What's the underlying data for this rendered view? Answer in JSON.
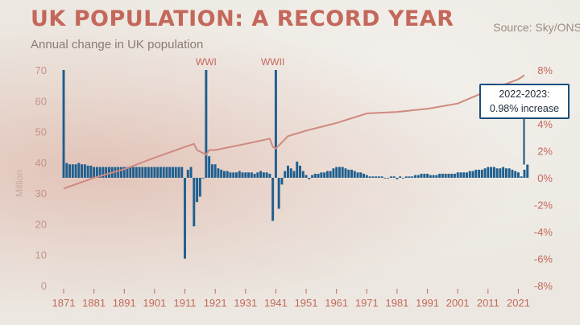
{
  "title": "UK POPULATION: A RECORD YEAR",
  "subtitle": "Annual change in UK population",
  "source": "Source: Sky/ONS",
  "callout": {
    "line1": "2022-2023:",
    "line2": "0.98% increase"
  },
  "colors": {
    "title": "#c4685b",
    "bar": "#1f5f8f",
    "line": "#cf8a80",
    "left_axis": "#c4948a",
    "right_axis": "#c4685b",
    "x_axis": "#c4685b",
    "callout_border": "#1b4e7c"
  },
  "chart_data": {
    "type": "bar+line",
    "x_start": 1871,
    "x_end": 2023,
    "x_ticks": [
      "1871",
      "1881",
      "1891",
      "1901",
      "1911",
      "1921",
      "1931",
      "1941",
      "1951",
      "1961",
      "1971",
      "1981",
      "1991",
      "2001",
      "2011",
      "2021"
    ],
    "left_axis": {
      "label": "Million",
      "range": [
        0,
        70
      ],
      "ticks": [
        "0",
        "10",
        "20",
        "30",
        "40",
        "50",
        "60",
        "70"
      ]
    },
    "right_axis": {
      "range": [
        -8,
        8
      ],
      "ticks": [
        "-8%",
        "-6%",
        "-4%",
        "-2%",
        "0%",
        "2%",
        "4%",
        "6%",
        "8%"
      ]
    },
    "annotations": [
      {
        "label": "WWI",
        "year": 1918
      },
      {
        "label": "WWII",
        "year": 1940
      }
    ],
    "series": [
      {
        "kind": "line",
        "axis": "left",
        "points": [
          [
            1871,
            31.5
          ],
          [
            1881,
            35.0
          ],
          [
            1891,
            37.8
          ],
          [
            1901,
            41.5
          ],
          [
            1911,
            45.0
          ],
          [
            1914,
            46.0
          ],
          [
            1915,
            44.0
          ],
          [
            1918,
            42.5
          ],
          [
            1919,
            44.0
          ],
          [
            1921,
            44.0
          ],
          [
            1931,
            46.0
          ],
          [
            1939,
            47.7
          ],
          [
            1940,
            45.0
          ],
          [
            1941,
            44.5
          ],
          [
            1945,
            48.5
          ],
          [
            1951,
            50.3
          ],
          [
            1961,
            52.8
          ],
          [
            1971,
            55.9
          ],
          [
            1981,
            56.4
          ],
          [
            1991,
            57.4
          ],
          [
            2001,
            59.1
          ],
          [
            2011,
            63.3
          ],
          [
            2021,
            67.0
          ],
          [
            2023,
            68.3
          ]
        ]
      },
      {
        "kind": "bar",
        "axis": "right",
        "values": [
          8.0,
          1.1,
          1.0,
          1.0,
          1.0,
          1.1,
          1.0,
          1.0,
          0.9,
          0.9,
          0.8,
          0.8,
          0.8,
          0.8,
          0.8,
          0.8,
          0.8,
          0.8,
          0.8,
          0.8,
          0.8,
          0.8,
          0.8,
          0.8,
          0.8,
          0.8,
          0.8,
          0.8,
          0.8,
          0.8,
          0.8,
          0.8,
          0.8,
          0.8,
          0.8,
          0.8,
          0.8,
          0.8,
          0.8,
          0.8,
          -6.0,
          0.6,
          0.8,
          -3.6,
          -1.8,
          -1.4,
          0.0,
          8.0,
          1.6,
          1.0,
          1.0,
          0.7,
          0.6,
          0.5,
          0.5,
          0.4,
          0.4,
          0.4,
          0.5,
          0.4,
          0.4,
          0.4,
          0.4,
          0.3,
          0.4,
          0.5,
          0.4,
          0.4,
          0.3,
          -3.2,
          8.0,
          -2.3,
          -0.5,
          0.5,
          0.9,
          0.7,
          0.5,
          1.2,
          0.9,
          0.5,
          0.2,
          -0.1,
          0.2,
          0.3,
          0.3,
          0.4,
          0.4,
          0.5,
          0.5,
          0.7,
          0.8,
          0.8,
          0.8,
          0.7,
          0.6,
          0.6,
          0.5,
          0.4,
          0.4,
          0.3,
          0.2,
          0.1,
          0.1,
          0.1,
          0.1,
          0.1,
          0.0,
          0.0,
          0.1,
          0.1,
          -0.1,
          0.1,
          0.0,
          0.1,
          0.1,
          0.1,
          0.2,
          0.2,
          0.3,
          0.3,
          0.3,
          0.2,
          0.2,
          0.2,
          0.3,
          0.3,
          0.3,
          0.3,
          0.3,
          0.3,
          0.4,
          0.4,
          0.4,
          0.4,
          0.5,
          0.5,
          0.6,
          0.6,
          0.6,
          0.7,
          0.8,
          0.8,
          0.8,
          0.7,
          0.7,
          0.8,
          0.7,
          0.7,
          0.6,
          0.5,
          0.4,
          0.1,
          0.6,
          0.98
        ]
      }
    ]
  }
}
